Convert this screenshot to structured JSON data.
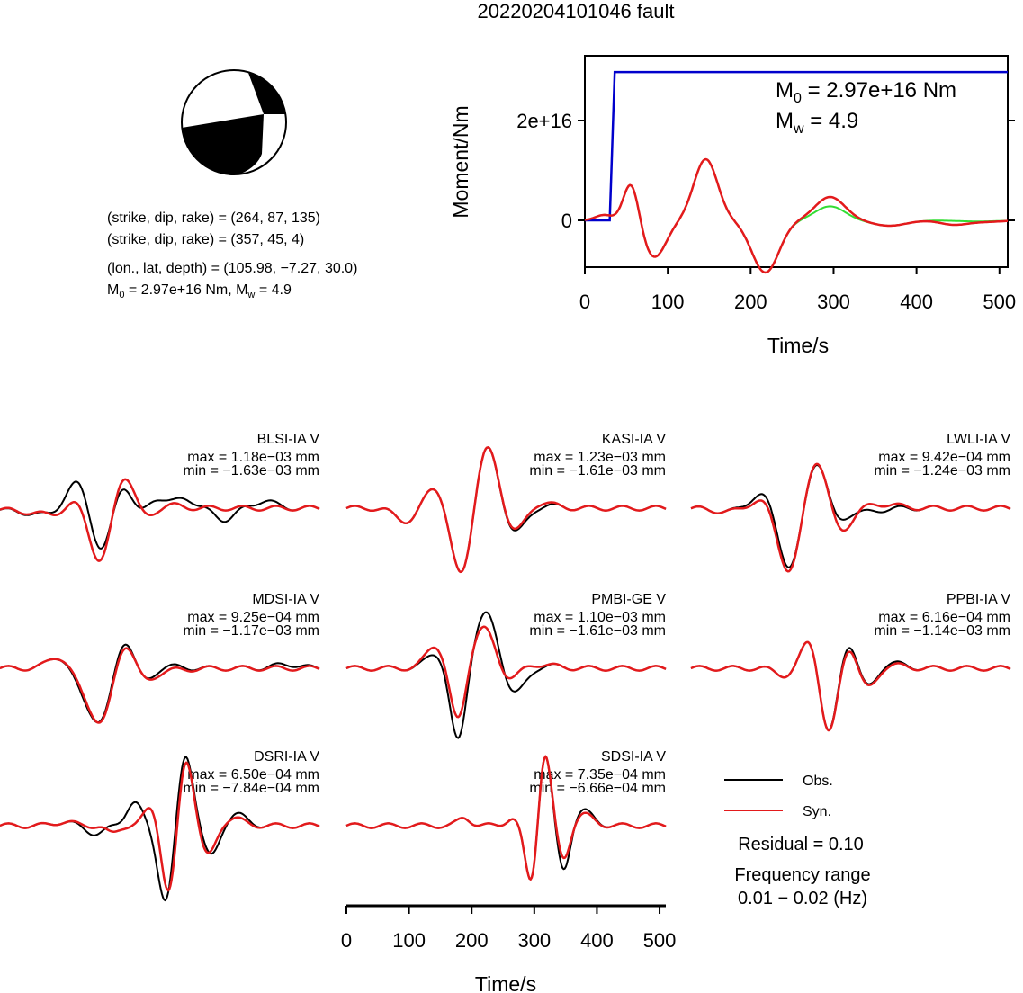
{
  "title": "20220204101046 fault",
  "mechanism": {
    "line1": "(strike, dip, rake) = (264, 87, 135)",
    "line2": "(strike, dip, rake) = (357, 45, 4)",
    "line3": "(lon., lat, depth) = (105.98, −7.27, 30.0)",
    "m0_prefix": "M",
    "m0_sub": "0",
    "m0_mid": " = 2.97e+16 Nm, M",
    "mw_sub": "w",
    "mw_suffix": " = 4.9"
  },
  "colors": {
    "obs": "#000000",
    "syn": "#e31a1c",
    "moment": "#0000cc",
    "green": "#33dd33"
  },
  "chart_data": [
    {
      "type": "line",
      "ylabel": "Moment/Nm",
      "xlabel": "Time/s",
      "xlim": [
        0,
        510
      ],
      "x_ticks": [
        "0",
        "100",
        "200",
        "300",
        "400",
        "500"
      ],
      "y_ticks": [
        "0",
        "2e+16"
      ],
      "annotation_m0": {
        "prefix": "M",
        "sub": "0",
        "suffix": " = 2.97e+16 Nm"
      },
      "annotation_mw": {
        "prefix": "M",
        "sub": "w",
        "suffix": " = 4.9"
      },
      "moment_step": {
        "onset_s": 30,
        "rise_end_s": 36,
        "final_Nm": 2.97e+16
      },
      "notes": "blue = cumulative moment; green and red = moment-rate waveforms (unitless shape)"
    },
    {
      "type": "line",
      "xlabel": "Time/s",
      "xlim": [
        0,
        510
      ],
      "x_ticks": [
        "0",
        "100",
        "200",
        "300",
        "400",
        "500"
      ],
      "series_labels": [
        "Obs.",
        "Syn."
      ],
      "stations": [
        {
          "name": "BLSI-IA V",
          "max": "max = 1.18e−03 mm",
          "min": "min = −1.63e−03 mm"
        },
        {
          "name": "KASI-IA V",
          "max": "max = 1.23e−03 mm",
          "min": "min = −1.61e−03 mm"
        },
        {
          "name": "LWLI-IA V",
          "max": "max = 9.42e−04 mm",
          "min": "min = −1.24e−03 mm"
        },
        {
          "name": "MDSI-IA V",
          "max": "max = 9.25e−04 mm",
          "min": "min = −1.17e−03 mm"
        },
        {
          "name": "PMBI-GE V",
          "max": "max = 1.10e−03 mm",
          "min": "min = −1.61e−03 mm"
        },
        {
          "name": "PPBI-IA V",
          "max": "max = 6.16e−04 mm",
          "min": "min = −1.14e−03 mm"
        },
        {
          "name": "DSRI-IA V",
          "max": "max = 6.50e−04 mm",
          "min": "min = −7.84e−04 mm"
        },
        {
          "name": "SDSI-IA V",
          "max": "max = 7.35e−04 mm",
          "min": "min = −6.66e−04 mm"
        }
      ]
    }
  ],
  "legend": {
    "obs": "Obs.",
    "syn": "Syn.",
    "residual": "Residual = 0.10",
    "freq_title": "Frequency range",
    "freq_value": "0.01 − 0.02 (Hz)"
  }
}
